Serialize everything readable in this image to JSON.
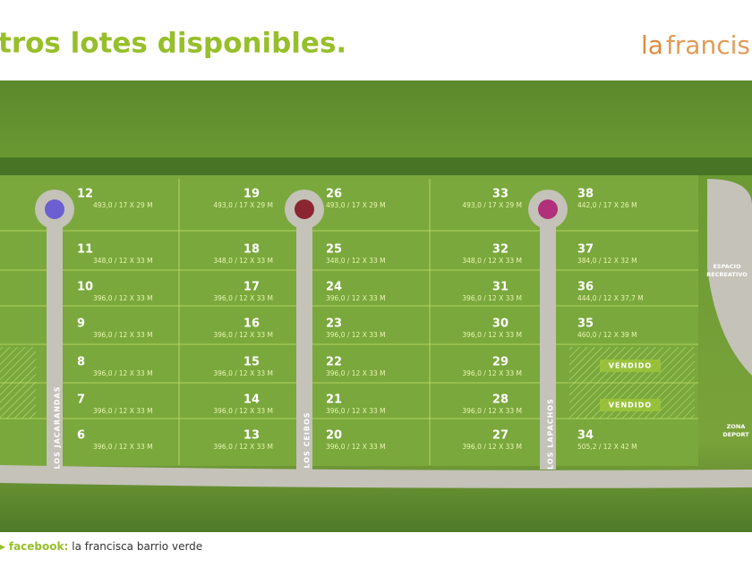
{
  "header": {
    "title": "tros lotes disponibles.",
    "logo": [
      "la",
      "francis"
    ]
  },
  "map": {
    "lots": [
      {
        "number": "12",
        "size": "493,0 / 17 X 29 M"
      },
      {
        "number": "11",
        "size": "348,0 / 12 X 33 M"
      },
      {
        "number": "10",
        "size": "396,0 / 12 X 33 M"
      },
      {
        "number": "9",
        "size": "396,0 / 12 X 33 M"
      },
      {
        "number": "8",
        "size": "396,0 / 12 X 33 M"
      },
      {
        "number": "7",
        "size": "396,0 / 12 X 33 M"
      },
      {
        "number": "6",
        "size": "396,0 / 12 X 33 M"
      },
      {
        "number": "19",
        "size": "493,0 / 17 X 29 M"
      },
      {
        "number": "18",
        "size": "348,0 / 12 X 33 M"
      },
      {
        "number": "17",
        "size": "396,0 / 12 X 33 M"
      },
      {
        "number": "16",
        "size": "396,0 / 12 X 33 M"
      },
      {
        "number": "15",
        "size": "396,0 / 12 X 33 M"
      },
      {
        "number": "14",
        "size": "396,0 / 12 X 33 M"
      },
      {
        "number": "13",
        "size": "396,0 / 12 X 33 M"
      },
      {
        "number": "26",
        "size": "493,0 / 17 X 29 M"
      },
      {
        "number": "25",
        "size": "348,0 / 12 X 33 M"
      },
      {
        "number": "24",
        "size": "396,0 / 12 X 33 M"
      },
      {
        "number": "23",
        "size": "396,0 / 12 X 33 M"
      },
      {
        "number": "22",
        "size": "396,0 / 12 X 33 M"
      },
      {
        "number": "21",
        "size": "396,0 / 12 X 33 M"
      },
      {
        "number": "20",
        "size": "396,0 / 12 X 33 M"
      },
      {
        "number": "33",
        "size": "493,0 / 17 X 29 M"
      },
      {
        "number": "32",
        "size": "348,0 / 12 X 33 M"
      },
      {
        "number": "31",
        "size": "396,0 / 12 X 33 M"
      },
      {
        "number": "30",
        "size": "396,0 / 12 X 33 M"
      },
      {
        "number": "29",
        "size": "396,0 / 12 X 33 M"
      },
      {
        "number": "28",
        "size": "396,0 / 12 X 33 M"
      },
      {
        "number": "27",
        "size": "396,0 / 12 X 33 M"
      },
      {
        "number": "38",
        "size": "442,0 / 17 X 26 M"
      },
      {
        "number": "37",
        "size": "384,0 / 12 X 32 M"
      },
      {
        "number": "36",
        "size": "444,0 / 12 X 37,7 M"
      },
      {
        "number": "35",
        "size": "460,0 / 12 X 39 M"
      },
      {
        "number": "34",
        "size": "505,2 / 12 X 42 M"
      }
    ],
    "streets": [
      "LOS JACARANDAS",
      "LOS CEIBOS",
      "LOS LAPACHOS"
    ],
    "sold": [
      "VENDIDO",
      "VENDIDO"
    ],
    "places": [
      [
        "ESPACIO",
        "RECREATIVO"
      ],
      [
        "ZONA",
        "DEPORT"
      ]
    ]
  },
  "footer": {
    "label": "facebook:",
    "text": "la francisca barrio verde"
  }
}
